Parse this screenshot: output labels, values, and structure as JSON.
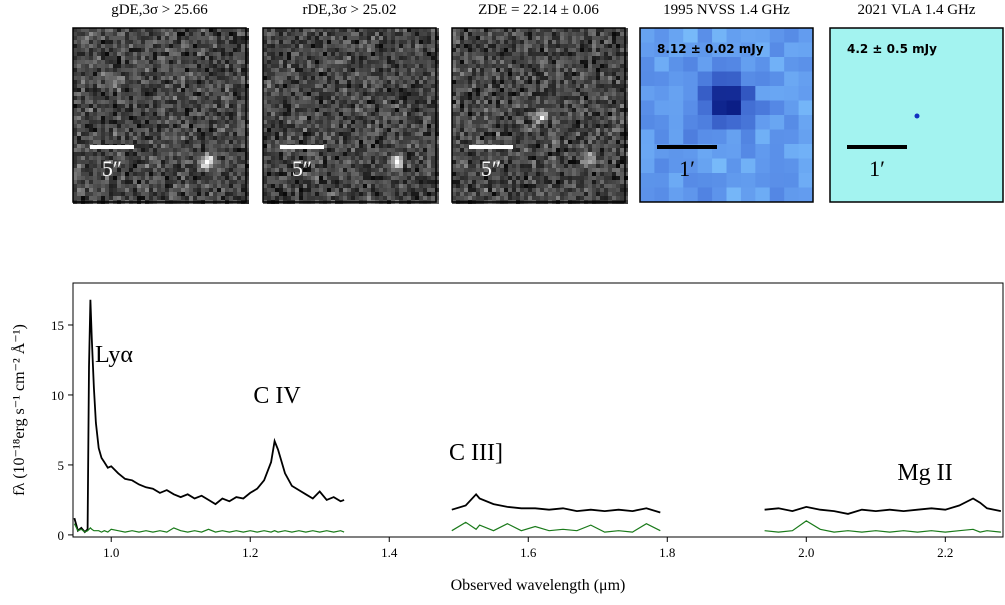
{
  "panels": [
    {
      "title": "gDE,3σ > 25.66",
      "scale_label": "5″"
    },
    {
      "title": "rDE,3σ > 25.02",
      "scale_label": "5″"
    },
    {
      "title": "ZDE = 22.14 ± 0.06",
      "scale_label": "5″"
    },
    {
      "title": "1995 NVSS 1.4 GHz",
      "scale_label": "1′",
      "flux_label": "8.12 ± 0.02 mJy"
    },
    {
      "title": "2021 VLA 1.4 GHz",
      "scale_label": "1′",
      "flux_label": "4.2 ± 0.5 mJy"
    }
  ],
  "chart_data": {
    "type": "line",
    "x_label": "Observed wavelength (μm)",
    "y_label": "fλ (10⁻¹⁸erg s⁻¹ cm⁻² Å⁻¹)",
    "annotations": [
      "Lyα",
      "C IV",
      "C III]",
      "Mg II"
    ],
    "xlim": [
      0.945,
      2.283
    ],
    "ylim": [
      -0.15,
      18
    ],
    "xticks": [
      {
        "value": 1,
        "label": "1.0"
      },
      1.2,
      1.4,
      1.6,
      1.8,
      {
        "value": 2,
        "label": "2.0"
      },
      2.2
    ],
    "yticks": [
      0,
      5,
      10,
      15
    ],
    "x": [
      0.947,
      0.952,
      0.957,
      0.962,
      0.966,
      0.968,
      0.97,
      0.972,
      0.975,
      0.978,
      0.982,
      0.986,
      0.99,
      0.995,
      1.0,
      1.01,
      1.02,
      1.03,
      1.04,
      1.05,
      1.06,
      1.07,
      1.08,
      1.09,
      1.1,
      1.11,
      1.12,
      1.13,
      1.14,
      1.15,
      1.16,
      1.17,
      1.18,
      1.19,
      1.2,
      1.21,
      1.22,
      1.23,
      1.235,
      1.24,
      1.25,
      1.26,
      1.27,
      1.28,
      1.29,
      1.3,
      1.31,
      1.32,
      1.33,
      1.335,
      1.41,
      1.49,
      1.51,
      1.525,
      1.53,
      1.55,
      1.57,
      1.59,
      1.61,
      1.63,
      1.65,
      1.67,
      1.69,
      1.71,
      1.73,
      1.75,
      1.77,
      1.79,
      1.86,
      1.94,
      1.96,
      1.98,
      2.0,
      2.02,
      2.04,
      2.06,
      2.08,
      2.1,
      2.12,
      2.14,
      2.16,
      2.18,
      2.2,
      2.22,
      2.24,
      2.25,
      2.26,
      2.28
    ],
    "series": [
      {
        "color": "#000000",
        "values": [
          1.2,
          0.3,
          0.5,
          0.2,
          0.4,
          12,
          16.8,
          14,
          10.5,
          8,
          6.2,
          5.5,
          5.2,
          4.8,
          4.9,
          4.4,
          4.0,
          3.9,
          3.6,
          3.4,
          3.3,
          3.0,
          3.2,
          2.9,
          2.7,
          2.9,
          2.6,
          2.8,
          2.5,
          2.2,
          2.6,
          2.4,
          2.7,
          2.6,
          3.0,
          3.3,
          3.9,
          5.2,
          6.7,
          6.1,
          4.4,
          3.5,
          3.2,
          2.9,
          2.6,
          3.1,
          2.5,
          2.7,
          2.4,
          2.5,
          null,
          1.8,
          2.1,
          2.9,
          2.6,
          2.2,
          2.0,
          1.9,
          1.9,
          1.8,
          1.9,
          1.7,
          1.8,
          1.7,
          1.8,
          1.7,
          1.9,
          1.6,
          null,
          1.8,
          1.9,
          1.7,
          2.0,
          1.8,
          1.7,
          1.5,
          1.8,
          1.7,
          1.8,
          1.7,
          1.8,
          1.9,
          1.8,
          2.1,
          2.6,
          2.3,
          1.9,
          1.7
        ]
      },
      {
        "color": "#1a7a1a",
        "values": [
          0.8,
          0.3,
          0.4,
          0.2,
          0.3,
          0.4,
          0.5,
          0.4,
          0.3,
          0.3,
          0.3,
          0.2,
          0.3,
          0.2,
          0.4,
          0.3,
          0.2,
          0.3,
          0.2,
          0.3,
          0.2,
          0.3,
          0.2,
          0.5,
          0.3,
          0.2,
          0.3,
          0.2,
          0.4,
          0.2,
          0.3,
          0.2,
          0.3,
          0.2,
          0.3,
          0.2,
          0.3,
          0.2,
          0.3,
          0.2,
          0.3,
          0.2,
          0.3,
          0.2,
          0.3,
          0.2,
          0.3,
          0.2,
          0.3,
          0.2,
          null,
          0.3,
          0.9,
          0.4,
          0.7,
          0.3,
          0.8,
          0.3,
          0.6,
          0.3,
          0.4,
          0.3,
          0.7,
          0.2,
          0.3,
          0.2,
          0.8,
          0.3,
          null,
          0.3,
          0.2,
          0.3,
          1.0,
          0.4,
          0.2,
          0.3,
          0.2,
          0.3,
          0.2,
          0.3,
          0.2,
          0.3,
          0.2,
          0.3,
          0.4,
          0.2,
          0.3,
          0.2
        ]
      }
    ]
  }
}
